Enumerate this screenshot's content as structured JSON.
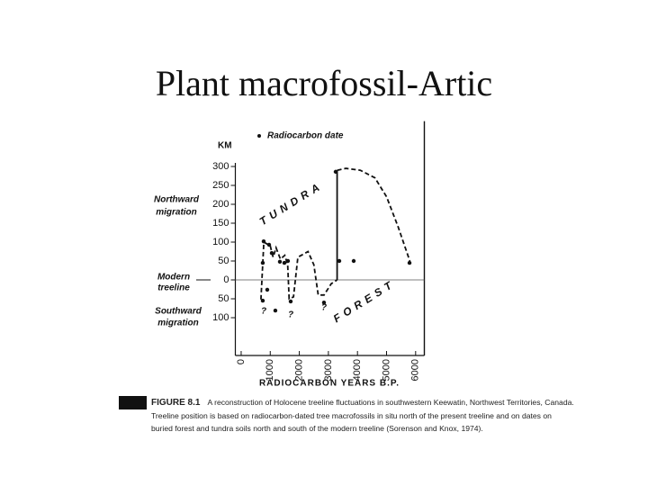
{
  "title": "Plant macrofossil-Artic",
  "chart_data": {
    "type": "line",
    "y_label": "KM",
    "x_label": "RADIOCARBON YEARS B.P.",
    "legend": "Radiocarbon date",
    "xlim": [
      -200,
      6300
    ],
    "ylim": [
      -200,
      420
    ],
    "xticks": [
      0,
      1000,
      2000,
      3000,
      4000,
      5000,
      6000
    ],
    "yticks": [
      300,
      250,
      200,
      150,
      100,
      50,
      0,
      {
        "value": -50,
        "label": "50"
      },
      {
        "value": -100,
        "label": "100"
      }
    ],
    "series": [
      {
        "style": "dashed",
        "color": "#111",
        "x": [
          680,
          780,
          1000,
          1100,
          1200,
          1350,
          1500,
          1600,
          1650,
          1800,
          1950,
          2300,
          2500,
          2650,
          2850,
          3100,
          3300
        ],
        "values": [
          -52,
          100,
          90,
          60,
          85,
          55,
          65,
          40,
          -50,
          -45,
          60,
          75,
          40,
          -40,
          -40,
          -10,
          0
        ]
      },
      {
        "style": "solid",
        "color": "#111",
        "x": [
          3300,
          3300
        ],
        "values": [
          0,
          290
        ]
      },
      {
        "style": "dashed",
        "color": "#111",
        "x": [
          3300,
          3600,
          4100,
          4600,
          5000,
          5400,
          5800
        ],
        "values": [
          290,
          295,
          290,
          270,
          220,
          140,
          50
        ]
      }
    ],
    "points": {
      "color": "#111",
      "x": [
        743,
        774,
        960,
        1053,
        898,
        743,
        1176,
        1331,
        1486,
        1610,
        1703,
        2848,
        3250,
        3375,
        3870,
        5790
      ],
      "values": [
        45,
        102,
        93,
        71,
        -26,
        -55,
        -81,
        48,
        45,
        50,
        -57,
        -60,
        286,
        50,
        50,
        45
      ]
    },
    "annotations": [
      "Northward",
      "migration",
      "Modern",
      "treeline",
      "Southward",
      "migration",
      "TUNDRA",
      "FOREST"
    ],
    "question_marks": [
      "?",
      "?",
      "?"
    ]
  },
  "caption": {
    "label": "FIGURE 8.1",
    "text": "A reconstruction of Holocene treeline fluctuations in southwestern Keewatin, Northwest Territories, Canada. Treeline position is based on radiocarbon-dated tree macrofossils in situ north of the present treeline and on dates on buried forest and tundra soils north and south of the modern treeline (Sorenson and Knox, 1974)."
  }
}
